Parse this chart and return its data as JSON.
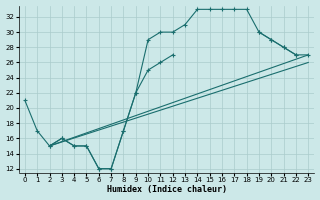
{
  "xlabel": "Humidex (Indice chaleur)",
  "background_color": "#cce8e8",
  "grid_color": "#aacccc",
  "line_color": "#1a6e6e",
  "xlim": [
    -0.5,
    23.5
  ],
  "ylim": [
    11.5,
    33.5
  ],
  "yticks": [
    12,
    14,
    16,
    18,
    20,
    22,
    24,
    26,
    28,
    30,
    32
  ],
  "xticks": [
    0,
    1,
    2,
    3,
    4,
    5,
    6,
    7,
    8,
    9,
    10,
    11,
    12,
    13,
    14,
    15,
    16,
    17,
    18,
    19,
    20,
    21,
    22,
    23
  ],
  "curve1_x": [
    0,
    1,
    2,
    3,
    4,
    5,
    6,
    7,
    8,
    9,
    10,
    11,
    12,
    13,
    14,
    15,
    16,
    17,
    18,
    19,
    20,
    21,
    22
  ],
  "curve1_y": [
    21,
    17,
    15,
    16,
    15,
    15,
    12,
    12,
    17,
    22,
    29,
    30,
    30,
    31,
    33,
    33,
    33,
    33,
    33,
    30,
    29,
    28,
    27
  ],
  "curve2_x": [
    2,
    3,
    4,
    5,
    6,
    7,
    8,
    9,
    10,
    11,
    12
  ],
  "curve2_y": [
    15,
    16,
    15,
    15,
    12,
    12,
    17,
    22,
    25,
    26,
    27
  ],
  "curve3_x": [
    19,
    20,
    21,
    22,
    23
  ],
  "curve3_y": [
    30,
    29,
    28,
    27,
    27
  ],
  "line1_x": [
    2,
    23
  ],
  "line1_y": [
    15,
    27
  ],
  "line2_x": [
    2,
    23
  ],
  "line2_y": [
    15,
    26
  ]
}
